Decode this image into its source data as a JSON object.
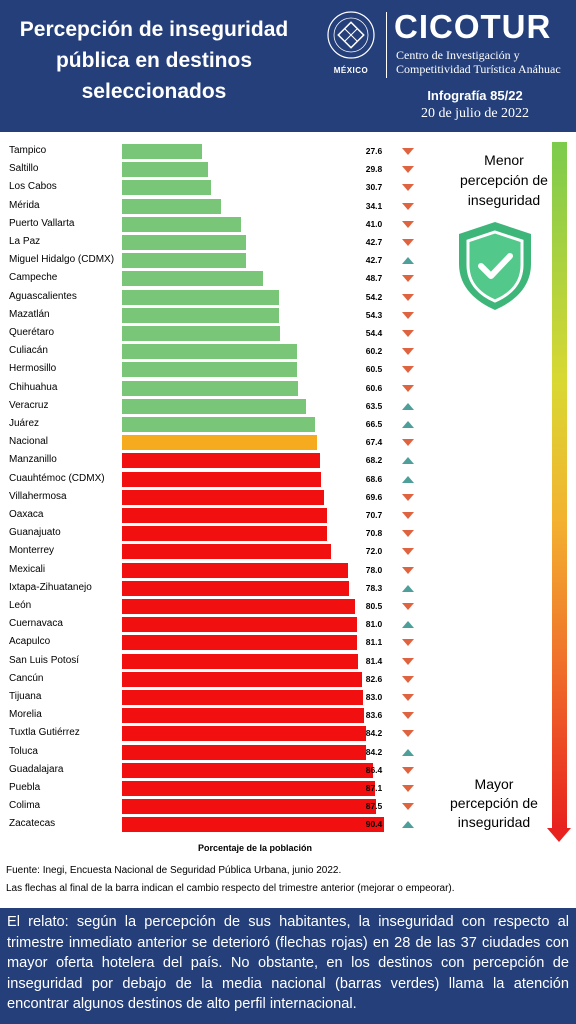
{
  "header": {
    "title_lines": [
      "Percepción de inseguridad",
      "pública en destinos",
      "seleccionados"
    ],
    "country": "MÉXICO",
    "brand": "CICOTUR",
    "brand_sub_1": "Centro de Investigación y",
    "brand_sub_2": "Competitividad Turística Anáhuac",
    "infografia": "Infografía 85/22",
    "date": "20 de julio de 2022"
  },
  "colors": {
    "green": "#79c679",
    "orange": "#f5ab1d",
    "red": "#f20f0f",
    "arrow_down": "#e06340",
    "arrow_up": "#4e9f9a",
    "navy": "#243f7a"
  },
  "chart_data": {
    "type": "bar",
    "orientation": "horizontal",
    "xlabel": "Porcentaje de la población",
    "categories": [
      "Tampico",
      "Saltillo",
      "Los Cabos",
      "Mérida",
      "Puerto Vallarta",
      "La Paz",
      "Miguel Hidalgo (CDMX)",
      "Campeche",
      "Aguascalientes",
      "Mazatlán",
      "Querétaro",
      "Culiacán",
      "Hermosillo",
      "Chihuahua",
      "Veracruz",
      "Juárez",
      "Nacional",
      "Manzanillo",
      "Cuauhtémoc (CDMX)",
      "Villahermosa",
      "Oaxaca",
      "Guanajuato",
      "Monterrey",
      "Mexicali",
      "Ixtapa-Zihuatanejo",
      "León",
      "Cuernavaca",
      "Acapulco",
      "San Luis Potosí",
      "Cancún",
      "Tijuana",
      "Morelia",
      "Tuxtla Gutiérrez",
      "Toluca",
      "Guadalajara",
      "Puebla",
      "Colima",
      "Zacatecas"
    ],
    "values": [
      27.6,
      29.8,
      30.7,
      34.1,
      41.0,
      42.7,
      42.7,
      48.7,
      54.2,
      54.3,
      54.4,
      60.2,
      60.5,
      60.6,
      63.5,
      66.5,
      67.4,
      68.2,
      68.6,
      69.6,
      70.7,
      70.8,
      72.0,
      78.0,
      78.3,
      80.5,
      81.0,
      81.1,
      81.4,
      82.6,
      83.0,
      83.6,
      84.2,
      84.2,
      86.4,
      87.1,
      87.5,
      90.4
    ],
    "labels": [
      "27.6",
      "29.8",
      "30.7",
      "34.1",
      "41.0",
      "42.7",
      "42.7",
      "48.7",
      "54.2",
      "54.3",
      "54.4",
      "60.2",
      "60.5",
      "60.6",
      "63.5",
      "66.5",
      "67.4",
      "68.2",
      "68.6",
      "69.6",
      "70.7",
      "70.8",
      "72.0",
      "78.0",
      "78.3",
      "80.5",
      "81.0",
      "81.1",
      "81.4",
      "82.6",
      "83.0",
      "83.6",
      "84.2",
      "84.2",
      "86.4",
      "87.1",
      "87.5",
      "90.4"
    ],
    "bar_color_group": [
      "green",
      "green",
      "green",
      "green",
      "green",
      "green",
      "green",
      "green",
      "green",
      "green",
      "green",
      "green",
      "green",
      "green",
      "green",
      "green",
      "orange",
      "red",
      "red",
      "red",
      "red",
      "red",
      "red",
      "red",
      "red",
      "red",
      "red",
      "red",
      "red",
      "red",
      "red",
      "red",
      "red",
      "red",
      "red",
      "red",
      "red",
      "red"
    ],
    "trend": [
      "down",
      "down",
      "down",
      "down",
      "down",
      "down",
      "up",
      "down",
      "down",
      "down",
      "down",
      "down",
      "down",
      "down",
      "up",
      "up",
      "down",
      "up",
      "up",
      "down",
      "down",
      "down",
      "down",
      "down",
      "up",
      "down",
      "up",
      "down",
      "down",
      "down",
      "down",
      "down",
      "down",
      "up",
      "down",
      "down",
      "down",
      "up"
    ],
    "xlim": [
      0,
      100
    ]
  },
  "scale": {
    "low_label_lines": [
      "Menor",
      "percepción de",
      "inseguridad"
    ],
    "high_label_lines": [
      "Mayor",
      "percepción de",
      "inseguridad"
    ]
  },
  "footer": {
    "source_1": "Fuente: Inegi,  Encuesta Nacional de Seguridad Pública Urbana, junio 2022.",
    "source_2": "Las flechas al final de la barra indican  el cambio respecto del trimestre anterior (mejorar o empeorar).",
    "narrative": "El relato: según la percepción de sus habitantes, la inseguridad con respecto al trimestre inmediato anterior se deterioró (flechas rojas) en 28 de las 37 ciudades con mayor oferta hotelera del país. No obstante, en los destinos con percepción de inseguridad por debajo de la media nacional (barras verdes) llama la atención encontrar algunos destinos de alto perfil internacional."
  }
}
